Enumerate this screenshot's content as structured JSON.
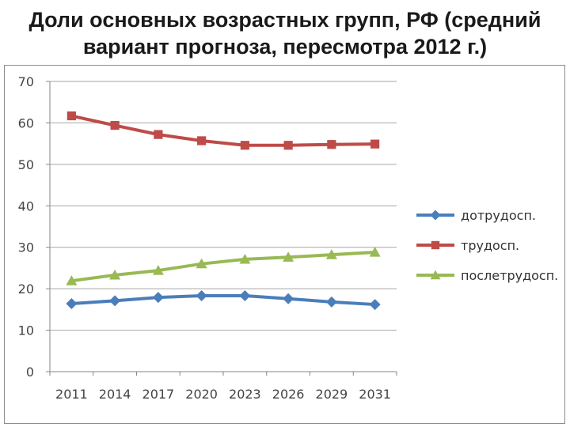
{
  "title_lines": [
    "Доли основных возрастных групп, РФ (средний",
    "вариант прогноза, пересмотра 2012 г.)"
  ],
  "chart_data": {
    "type": "line",
    "title": "Доли основных возрастных групп, РФ (средний вариант прогноза, пересмотра 2012 г.)",
    "categories": [
      "2011",
      "2014",
      "2017",
      "2020",
      "2023",
      "2026",
      "2029",
      "2031"
    ],
    "ylim": [
      0,
      70
    ],
    "yticks": [
      0,
      10,
      20,
      30,
      40,
      50,
      60,
      70
    ],
    "grid": true,
    "legend_position": "right",
    "series": [
      {
        "name": "дотрудосп.",
        "color": "#4a7ebb",
        "marker": "diamond",
        "values": [
          16.4,
          17.1,
          17.9,
          18.3,
          18.3,
          17.6,
          16.8,
          16.2
        ]
      },
      {
        "name": "трудосп.",
        "color": "#be4b48",
        "marker": "square",
        "values": [
          61.7,
          59.4,
          57.2,
          55.7,
          54.6,
          54.6,
          54.8,
          54.9
        ]
      },
      {
        "name": "послетрудосп.",
        "color": "#98b954",
        "marker": "triangle",
        "values": [
          21.9,
          23.3,
          24.4,
          26.0,
          27.1,
          27.6,
          28.2,
          28.8
        ]
      }
    ]
  }
}
